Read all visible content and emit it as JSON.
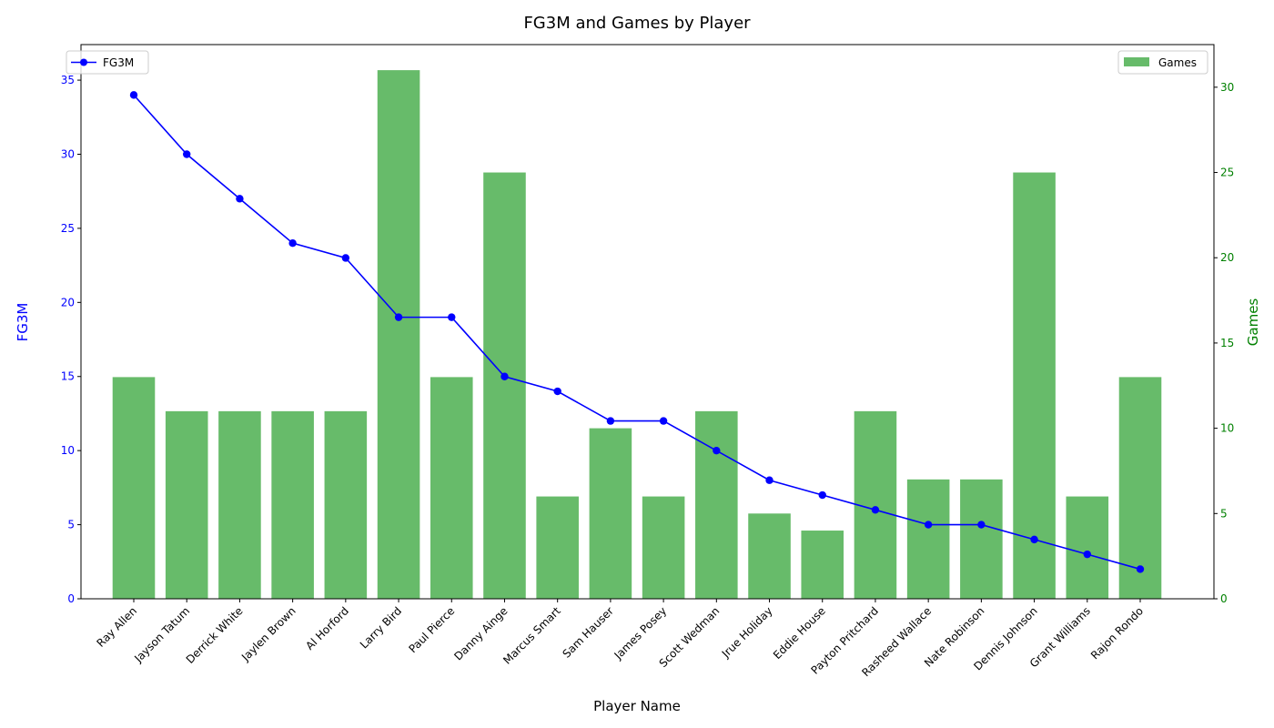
{
  "chart_data": {
    "type": "bar+line",
    "title": "FG3M and Games by Player",
    "xlabel": "Player Name",
    "categories": [
      "Ray Allen",
      "Jayson Tatum",
      "Derrick White",
      "Jaylen Brown",
      "Al Horford",
      "Larry Bird",
      "Paul Pierce",
      "Danny Ainge",
      "Marcus Smart",
      "Sam Hauser",
      "James Posey",
      "Scott Wedman",
      "Jrue Holiday",
      "Eddie House",
      "Payton Pritchard",
      "Rasheed Wallace",
      "Nate Robinson",
      "Dennis Johnson",
      "Grant Williams",
      "Rajon Rondo"
    ],
    "series": [
      {
        "name": "FG3M",
        "type": "line",
        "axis": "left",
        "color": "#0000ff",
        "values": [
          34,
          30,
          27,
          24,
          23,
          19,
          19,
          15,
          14,
          12,
          12,
          10,
          8,
          7,
          6,
          5,
          5,
          4,
          3,
          2
        ]
      },
      {
        "name": "Games",
        "type": "bar",
        "axis": "right",
        "color": "#4caf50",
        "values": [
          13,
          11,
          11,
          11,
          11,
          31,
          13,
          25,
          6,
          10,
          6,
          11,
          5,
          4,
          11,
          7,
          7,
          25,
          6,
          13
        ]
      }
    ],
    "y_left": {
      "label": "FG3M",
      "ylim": [
        0,
        37.4
      ],
      "ticks": [
        0,
        5,
        10,
        15,
        20,
        25,
        30,
        35
      ],
      "color": "#0000ff"
    },
    "y_right": {
      "label": "Games",
      "ylim": [
        0,
        32.5
      ],
      "ticks": [
        0,
        5,
        10,
        15,
        20,
        25,
        30
      ],
      "color": "#008000"
    },
    "legend_left": {
      "placement": "top-left",
      "entries": [
        "FG3M"
      ]
    },
    "legend_right": {
      "placement": "top-right",
      "entries": [
        "Games"
      ]
    },
    "grid": false
  }
}
